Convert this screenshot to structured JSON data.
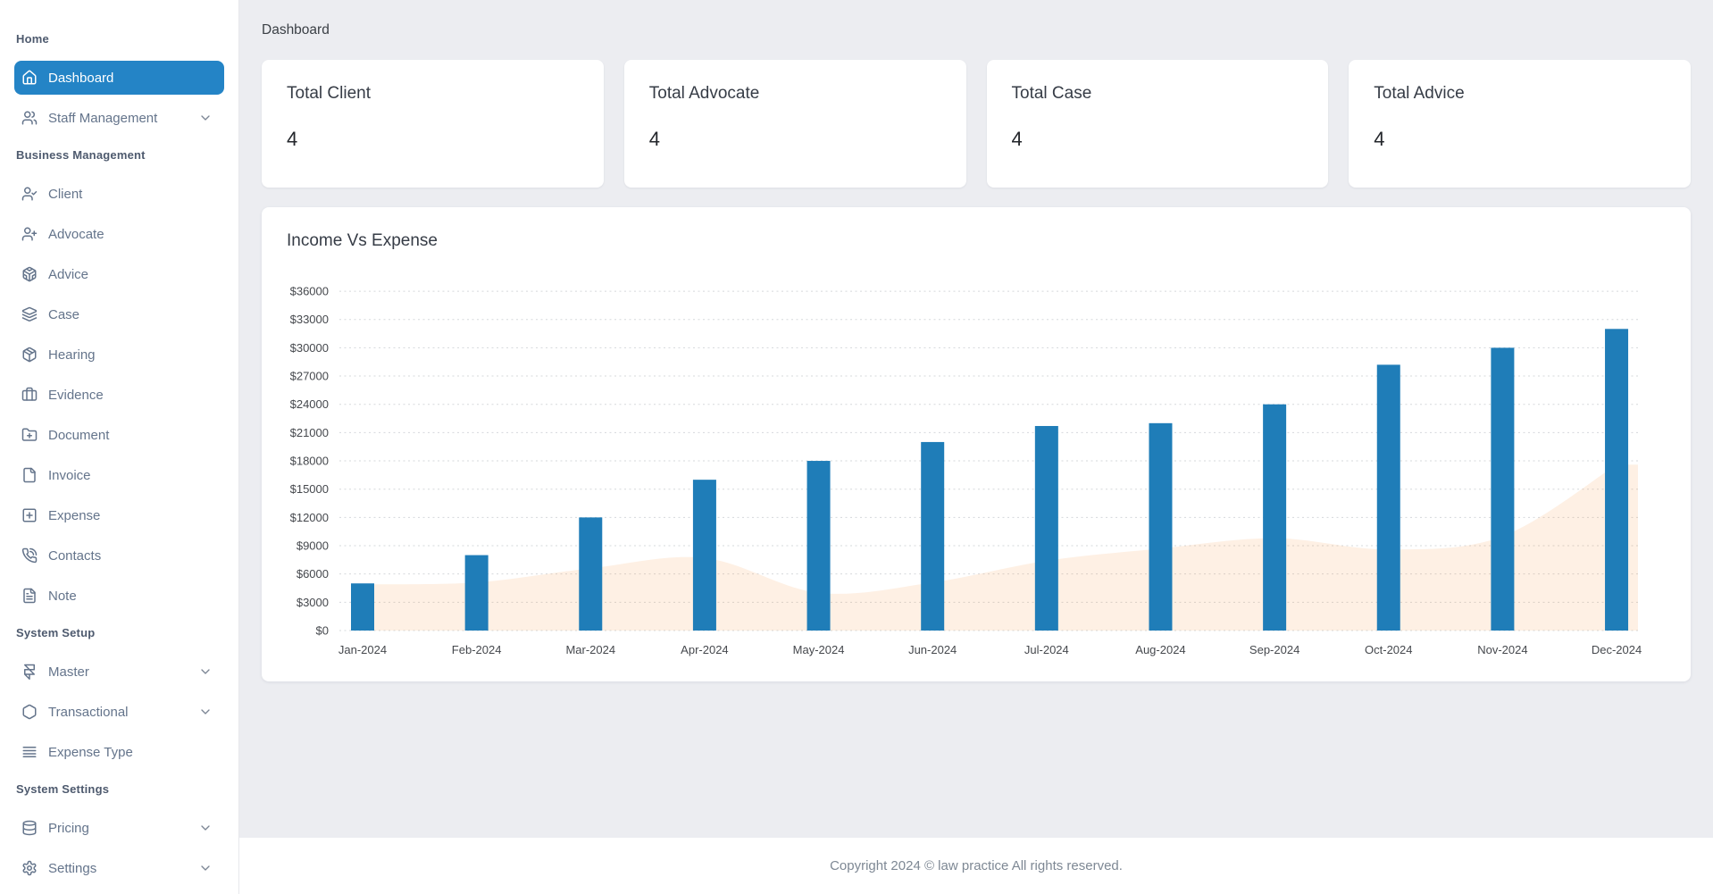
{
  "page": {
    "title": "Dashboard"
  },
  "sidebar": {
    "sections": [
      {
        "label": "Home",
        "items": [
          {
            "label": "Dashboard",
            "icon": "house",
            "active": true
          },
          {
            "label": "Staff Management",
            "icon": "users",
            "chevron": true
          }
        ]
      },
      {
        "label": "Business Management",
        "items": [
          {
            "label": "Client",
            "icon": "user-check"
          },
          {
            "label": "Advocate",
            "icon": "user-plus"
          },
          {
            "label": "Advice",
            "icon": "codesandbox"
          },
          {
            "label": "Case",
            "icon": "layers"
          },
          {
            "label": "Hearing",
            "icon": "package"
          },
          {
            "label": "Evidence",
            "icon": "briefcase"
          },
          {
            "label": "Document",
            "icon": "folder-plus"
          },
          {
            "label": "Invoice",
            "icon": "file"
          },
          {
            "label": "Expense",
            "icon": "square-plus"
          },
          {
            "label": "Contacts",
            "icon": "phone-call"
          },
          {
            "label": "Note",
            "icon": "file-text"
          }
        ]
      },
      {
        "label": "System Setup",
        "items": [
          {
            "label": "Master",
            "icon": "framer",
            "chevron": true
          },
          {
            "label": "Transactional",
            "icon": "hexagon",
            "chevron": true
          },
          {
            "label": "Expense Type",
            "icon": "align-justify"
          }
        ]
      },
      {
        "label": "System Settings",
        "items": [
          {
            "label": "Pricing",
            "icon": "database",
            "chevron": true
          },
          {
            "label": "Settings",
            "icon": "settings",
            "chevron": true
          }
        ]
      }
    ]
  },
  "stats": [
    {
      "label": "Total Client",
      "value": "4"
    },
    {
      "label": "Total Advocate",
      "value": "4"
    },
    {
      "label": "Total Case",
      "value": "4"
    },
    {
      "label": "Total Advice",
      "value": "4"
    }
  ],
  "chart_data": {
    "type": "mixed",
    "title": "Income Vs Expense",
    "categories": [
      "Jan-2024",
      "Feb-2024",
      "Mar-2024",
      "Apr-2024",
      "May-2024",
      "Jun-2024",
      "Jul-2024",
      "Aug-2024",
      "Sep-2024",
      "Oct-2024",
      "Nov-2024",
      "Dec-2024"
    ],
    "series": [
      {
        "name": "Income",
        "type": "bar",
        "color": "#1f7db8",
        "values": [
          5000,
          8000,
          12000,
          16000,
          18000,
          20000,
          21700,
          22000,
          24000,
          28200,
          30000,
          32000
        ]
      },
      {
        "name": "Expense",
        "type": "area",
        "color": "#f6984a",
        "fill_opacity": 0.15,
        "values": [
          4900,
          5100,
          6600,
          7700,
          4000,
          5100,
          7400,
          8700,
          9800,
          8600,
          10000,
          17600
        ]
      }
    ],
    "ylabel_prefix": "$",
    "ylim": [
      0,
      36000
    ],
    "ytick_step": 3000,
    "grid": "horizontal-dotted",
    "legend_position": "none"
  },
  "footer": {
    "text": "Copyright 2024 © law practice All rights reserved."
  },
  "colors": {
    "sidebar_active_bg": "#2484c6",
    "sidebar_item_text": "#64748b",
    "main_bg": "#ecedf1",
    "bar_series": "#1f7db8",
    "area_series": "#f6984a",
    "grid_line": "#d5d8db",
    "axis_label": "#45484d"
  }
}
